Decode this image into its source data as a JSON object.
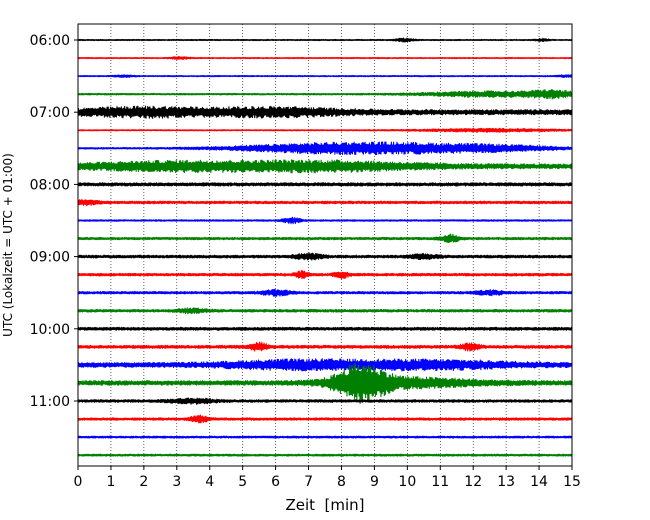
{
  "chart_data": {
    "type": "line",
    "title": "",
    "xlabel": "Zeit  [min]",
    "ylabel": "UTC (Lokalzeit = UTC + 01:00)",
    "xlim": [
      0,
      15
    ],
    "x_ticks": [
      0,
      1,
      2,
      3,
      4,
      5,
      6,
      7,
      8,
      9,
      10,
      11,
      12,
      13,
      14,
      15
    ],
    "y_tick_labels": [
      "06:00",
      "07:00",
      "08:00",
      "09:00",
      "10:00",
      "11:00"
    ],
    "grid": "vertical dotted lines at each minute",
    "trace_interval_minutes": 15,
    "trace_colors": [
      "#000000",
      "#ff0000",
      "#0000ff",
      "#008000"
    ],
    "series": [
      {
        "start": "06:00",
        "amplitude": 0.6,
        "events": [
          {
            "t": 9.9,
            "amp": 1.4,
            "width": 0.2
          },
          {
            "t": 14.1,
            "amp": 1.0,
            "width": 0.15
          }
        ]
      },
      {
        "start": "06:15",
        "amplitude": 0.6,
        "events": [
          {
            "t": 3.1,
            "amp": 1.0,
            "width": 0.2
          }
        ]
      },
      {
        "start": "06:30",
        "amplitude": 0.6,
        "events": [
          {
            "t": 1.4,
            "amp": 1.0,
            "width": 0.2
          },
          {
            "t": 14.8,
            "amp": 0.9,
            "width": 0.2
          }
        ]
      },
      {
        "start": "06:45",
        "amplitude": 0.8,
        "events": [
          {
            "t": 12.5,
            "amp": 2.5,
            "width": 1.4
          },
          {
            "t": 14.4,
            "amp": 3.0,
            "width": 0.5
          }
        ]
      },
      {
        "start": "07:00",
        "amplitude": 2.6,
        "events": [
          {
            "t": 2.0,
            "amp": 3.5,
            "width": 1.5
          },
          {
            "t": 6.0,
            "amp": 3.2,
            "width": 1.5
          }
        ]
      },
      {
        "start": "07:15",
        "amplitude": 0.6,
        "events": [
          {
            "t": 12.5,
            "amp": 1.4,
            "width": 1.5
          }
        ]
      },
      {
        "start": "07:30",
        "amplitude": 0.8,
        "events": [
          {
            "t": 7.0,
            "amp": 3.5,
            "width": 1.8
          },
          {
            "t": 9.5,
            "amp": 3.8,
            "width": 1.6
          },
          {
            "t": 12.5,
            "amp": 3.0,
            "width": 1.5
          }
        ]
      },
      {
        "start": "07:45",
        "amplitude": 2.5,
        "events": [
          {
            "t": 3.0,
            "amp": 3.5,
            "width": 2.0
          },
          {
            "t": 7.5,
            "amp": 3.8,
            "width": 2.0
          }
        ]
      },
      {
        "start": "08:00",
        "amplitude": 1.6,
        "events": []
      },
      {
        "start": "08:15",
        "amplitude": 1.3,
        "events": [
          {
            "t": 0.2,
            "amp": 2.0,
            "width": 0.3
          }
        ]
      },
      {
        "start": "08:30",
        "amplitude": 0.8,
        "events": [
          {
            "t": 6.5,
            "amp": 2.5,
            "width": 0.2
          }
        ]
      },
      {
        "start": "08:45",
        "amplitude": 1.2,
        "events": [
          {
            "t": 11.3,
            "amp": 3.5,
            "width": 0.2
          }
        ]
      },
      {
        "start": "09:00",
        "amplitude": 1.4,
        "events": [
          {
            "t": 7.0,
            "amp": 2.5,
            "width": 0.3
          },
          {
            "t": 10.5,
            "amp": 2.0,
            "width": 0.3
          }
        ]
      },
      {
        "start": "09:15",
        "amplitude": 1.3,
        "events": [
          {
            "t": 6.8,
            "amp": 3.0,
            "width": 0.15
          },
          {
            "t": 8.0,
            "amp": 3.0,
            "width": 0.15
          }
        ]
      },
      {
        "start": "09:30",
        "amplitude": 1.2,
        "events": [
          {
            "t": 6.0,
            "amp": 2.5,
            "width": 0.3
          },
          {
            "t": 12.5,
            "amp": 2.0,
            "width": 0.3
          }
        ]
      },
      {
        "start": "09:45",
        "amplitude": 1.3,
        "events": [
          {
            "t": 3.5,
            "amp": 2.0,
            "width": 0.3
          }
        ]
      },
      {
        "start": "10:00",
        "amplitude": 1.5,
        "events": []
      },
      {
        "start": "10:15",
        "amplitude": 1.5,
        "events": [
          {
            "t": 5.5,
            "amp": 3.5,
            "width": 0.2
          },
          {
            "t": 11.9,
            "amp": 3.0,
            "width": 0.2
          }
        ]
      },
      {
        "start": "10:30",
        "amplitude": 2.4,
        "events": [
          {
            "t": 6.5,
            "amp": 3.2,
            "width": 1.5
          },
          {
            "t": 10.5,
            "amp": 3.5,
            "width": 2.0
          }
        ]
      },
      {
        "start": "10:45",
        "amplitude": 2.3,
        "events": [
          {
            "t": 8.6,
            "amp": 16.0,
            "width": 0.55
          },
          {
            "t": 10.0,
            "amp": 4.0,
            "width": 1.5
          }
        ]
      },
      {
        "start": "11:00",
        "amplitude": 1.3,
        "events": [
          {
            "t": 3.5,
            "amp": 2.0,
            "width": 0.5
          }
        ]
      },
      {
        "start": "11:15",
        "amplitude": 1.2,
        "events": [
          {
            "t": 3.7,
            "amp": 3.0,
            "width": 0.2
          }
        ]
      },
      {
        "start": "11:30",
        "amplitude": 1.0,
        "events": []
      },
      {
        "start": "11:45",
        "amplitude": 1.0,
        "events": []
      }
    ]
  }
}
